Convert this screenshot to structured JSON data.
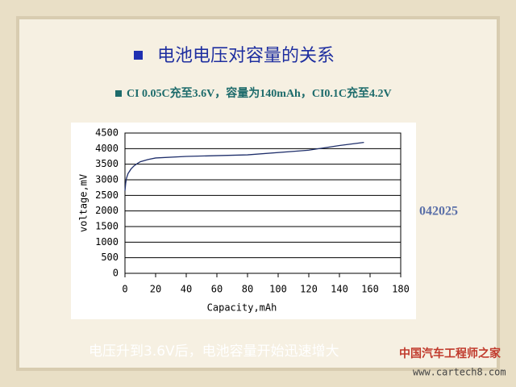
{
  "chart_data": {
    "type": "line",
    "title": "电池电压对容量的关系",
    "subtitle": "CI 0.05C充至3.6V，容量为140mAh，CI0.1C充至4.2V",
    "x_label": "Capacity,mAh",
    "y_label": "voltage,mV",
    "annotations": [
      "042025",
      "电压升到3.6V后，电池容量开始迅速增大"
    ],
    "watermark": [
      "中国汽车工程师之家",
      "www.cartech8.com"
    ],
    "series": [
      {
        "name": "voltage",
        "color": "#1f2f6b",
        "x": [
          0,
          0.5,
          1,
          2,
          4,
          6,
          8,
          10,
          15,
          20,
          40,
          80,
          120,
          140,
          156
        ],
        "values": [
          2650,
          2900,
          3050,
          3200,
          3350,
          3450,
          3520,
          3580,
          3650,
          3700,
          3750,
          3800,
          3950,
          4100,
          4200
        ]
      }
    ],
    "xlim": [
      0,
      180
    ],
    "xticks": [
      0,
      20,
      40,
      60,
      80,
      100,
      120,
      140,
      160,
      180
    ],
    "ylim": [
      0,
      4500
    ],
    "yticks": [
      0,
      500,
      1000,
      1500,
      2000,
      2500,
      3000,
      3500,
      4000,
      4500
    ],
    "grid": true
  }
}
